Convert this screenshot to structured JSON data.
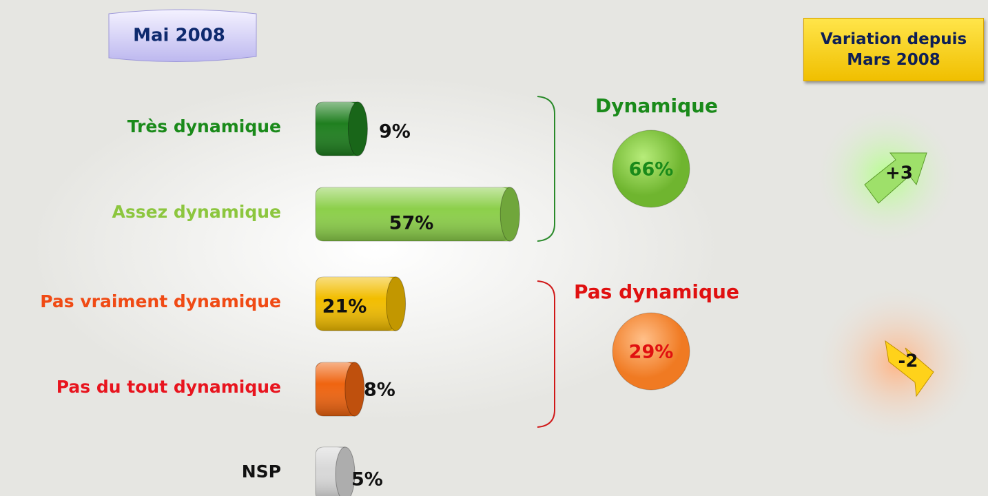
{
  "chart_data": {
    "type": "bar",
    "orientation": "horizontal",
    "title": "Mai 2008",
    "categories": [
      "Très dynamique",
      "Assez dynamique",
      "Pas vraiment dynamique",
      "Pas du tout dynamique",
      "NSP"
    ],
    "values": [
      9,
      57,
      21,
      8,
      5
    ],
    "value_labels": [
      "9%",
      "57%",
      "21%",
      "8%",
      "5%"
    ],
    "colors": [
      "#1f7f1f",
      "#8ccf4a",
      "#f2bd00",
      "#ef6410",
      "#d8d8d8"
    ],
    "label_colors": [
      "#1a8a1a",
      "#8cc63e",
      "#f04a14",
      "#e8141e",
      "#111111"
    ],
    "groups": [
      {
        "name": "Dynamique",
        "value": 66,
        "value_label": "66%",
        "change": 3,
        "change_label": "+3",
        "color": "#1a8a1a"
      },
      {
        "name": "Pas dynamique",
        "value": 29,
        "value_label": "29%",
        "change": -2,
        "change_label": "-2",
        "color": "#e01010"
      }
    ],
    "change_title": "Variation depuis Mars 2008"
  }
}
